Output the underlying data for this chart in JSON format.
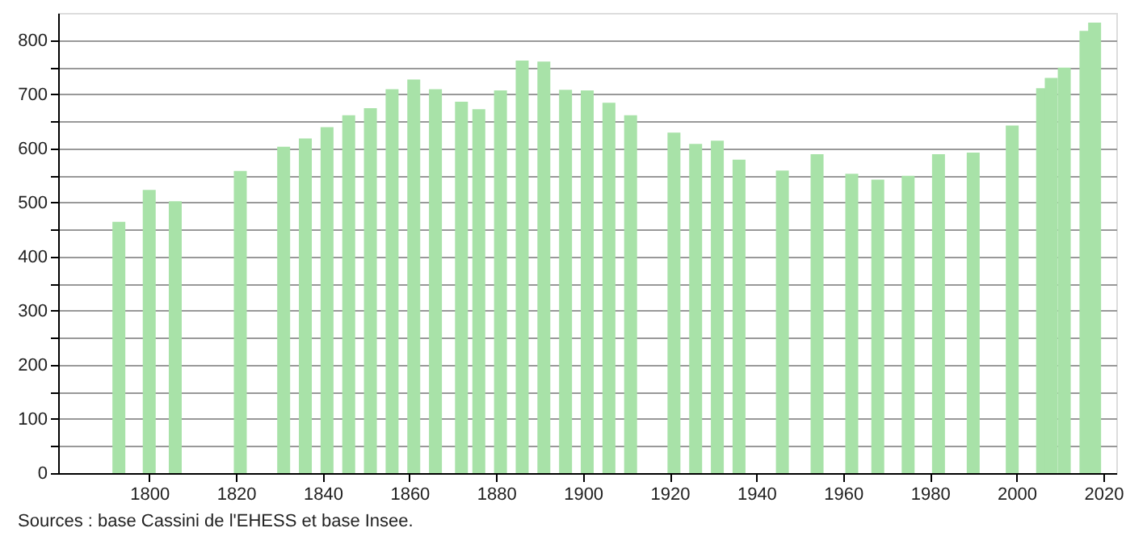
{
  "chart_data": {
    "type": "bar",
    "x": [
      1793,
      1800,
      1806,
      1821,
      1831,
      1836,
      1841,
      1846,
      1851,
      1856,
      1861,
      1866,
      1872,
      1876,
      1881,
      1886,
      1891,
      1896,
      1901,
      1906,
      1911,
      1921,
      1926,
      1931,
      1936,
      1946,
      1954,
      1962,
      1968,
      1975,
      1982,
      1990,
      1999,
      2006,
      2008,
      2011,
      2016,
      2018
    ],
    "values": [
      464,
      523,
      502,
      558,
      603,
      618,
      639,
      661,
      674,
      709,
      727,
      709,
      686,
      672,
      707,
      762,
      760,
      708,
      707,
      684,
      661,
      629,
      608,
      614,
      579,
      559,
      589,
      553,
      542,
      549,
      589,
      592,
      642,
      711,
      730,
      749,
      817,
      832
    ],
    "color": "#a8e2a8",
    "xlim": [
      1779,
      2023
    ],
    "xticks": [
      1800,
      1820,
      1840,
      1860,
      1880,
      1900,
      1920,
      1940,
      1960,
      1980,
      2000,
      2020
    ],
    "ylim": [
      0,
      850
    ],
    "yticks": [
      0,
      {
        "value": 50,
        "label": null
      },
      100,
      {
        "value": 150,
        "label": null
      },
      200,
      {
        "value": 250,
        "label": null
      },
      300,
      {
        "value": 350,
        "label": null
      },
      400,
      {
        "value": 450,
        "label": null
      },
      500,
      {
        "value": 550,
        "label": null
      },
      600,
      {
        "value": 650,
        "label": null
      },
      700,
      {
        "value": 750,
        "label": null
      },
      800
    ],
    "grid": "y",
    "annotations": [
      "Sources : base Cassini de l'EHESS et base Insee."
    ]
  }
}
